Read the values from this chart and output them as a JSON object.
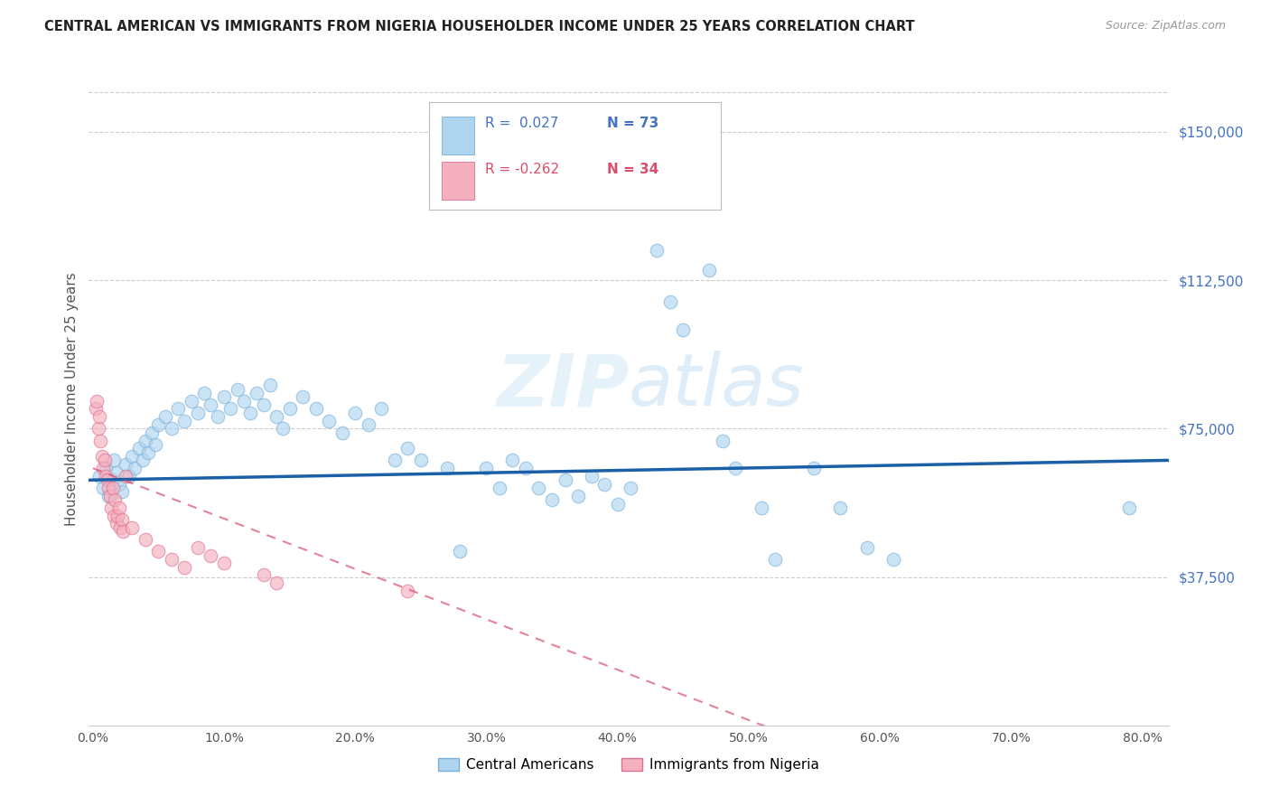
{
  "title": "CENTRAL AMERICAN VS IMMIGRANTS FROM NIGERIA HOUSEHOLDER INCOME UNDER 25 YEARS CORRELATION CHART",
  "source": "Source: ZipAtlas.com",
  "ylabel": "Householder Income Under 25 years",
  "ytick_labels": [
    "$150,000",
    "$112,500",
    "$75,000",
    "$37,500"
  ],
  "ytick_values": [
    150000,
    112500,
    75000,
    37500
  ],
  "ymin": 0,
  "ymax": 165000,
  "xmin": -0.003,
  "xmax": 0.82,
  "legend_label_blue": "Central Americans",
  "legend_label_pink": "Immigrants from Nigeria",
  "blue_scatter": [
    [
      0.005,
      63000
    ],
    [
      0.008,
      60000
    ],
    [
      0.01,
      65000
    ],
    [
      0.012,
      58000
    ],
    [
      0.015,
      62000
    ],
    [
      0.016,
      67000
    ],
    [
      0.018,
      64000
    ],
    [
      0.02,
      61000
    ],
    [
      0.022,
      59000
    ],
    [
      0.025,
      66000
    ],
    [
      0.028,
      63000
    ],
    [
      0.03,
      68000
    ],
    [
      0.032,
      65000
    ],
    [
      0.035,
      70000
    ],
    [
      0.038,
      67000
    ],
    [
      0.04,
      72000
    ],
    [
      0.042,
      69000
    ],
    [
      0.045,
      74000
    ],
    [
      0.048,
      71000
    ],
    [
      0.05,
      76000
    ],
    [
      0.055,
      78000
    ],
    [
      0.06,
      75000
    ],
    [
      0.065,
      80000
    ],
    [
      0.07,
      77000
    ],
    [
      0.075,
      82000
    ],
    [
      0.08,
      79000
    ],
    [
      0.085,
      84000
    ],
    [
      0.09,
      81000
    ],
    [
      0.095,
      78000
    ],
    [
      0.1,
      83000
    ],
    [
      0.105,
      80000
    ],
    [
      0.11,
      85000
    ],
    [
      0.115,
      82000
    ],
    [
      0.12,
      79000
    ],
    [
      0.125,
      84000
    ],
    [
      0.13,
      81000
    ],
    [
      0.135,
      86000
    ],
    [
      0.14,
      78000
    ],
    [
      0.145,
      75000
    ],
    [
      0.15,
      80000
    ],
    [
      0.16,
      83000
    ],
    [
      0.17,
      80000
    ],
    [
      0.18,
      77000
    ],
    [
      0.19,
      74000
    ],
    [
      0.2,
      79000
    ],
    [
      0.21,
      76000
    ],
    [
      0.22,
      80000
    ],
    [
      0.23,
      67000
    ],
    [
      0.24,
      70000
    ],
    [
      0.25,
      67000
    ],
    [
      0.27,
      65000
    ],
    [
      0.28,
      44000
    ],
    [
      0.3,
      65000
    ],
    [
      0.31,
      60000
    ],
    [
      0.32,
      67000
    ],
    [
      0.33,
      65000
    ],
    [
      0.34,
      60000
    ],
    [
      0.35,
      57000
    ],
    [
      0.36,
      62000
    ],
    [
      0.37,
      58000
    ],
    [
      0.38,
      63000
    ],
    [
      0.39,
      61000
    ],
    [
      0.4,
      56000
    ],
    [
      0.41,
      60000
    ],
    [
      0.43,
      120000
    ],
    [
      0.44,
      107000
    ],
    [
      0.45,
      100000
    ],
    [
      0.47,
      115000
    ],
    [
      0.48,
      72000
    ],
    [
      0.49,
      65000
    ],
    [
      0.51,
      55000
    ],
    [
      0.52,
      42000
    ],
    [
      0.55,
      65000
    ],
    [
      0.57,
      55000
    ],
    [
      0.59,
      45000
    ],
    [
      0.61,
      42000
    ],
    [
      0.79,
      55000
    ]
  ],
  "pink_scatter": [
    [
      0.002,
      80000
    ],
    [
      0.003,
      82000
    ],
    [
      0.004,
      75000
    ],
    [
      0.005,
      78000
    ],
    [
      0.006,
      72000
    ],
    [
      0.007,
      68000
    ],
    [
      0.008,
      65000
    ],
    [
      0.009,
      67000
    ],
    [
      0.01,
      63000
    ],
    [
      0.011,
      62000
    ],
    [
      0.012,
      60000
    ],
    [
      0.013,
      58000
    ],
    [
      0.014,
      55000
    ],
    [
      0.015,
      60000
    ],
    [
      0.016,
      53000
    ],
    [
      0.017,
      57000
    ],
    [
      0.018,
      51000
    ],
    [
      0.019,
      53000
    ],
    [
      0.02,
      55000
    ],
    [
      0.021,
      50000
    ],
    [
      0.022,
      52000
    ],
    [
      0.023,
      49000
    ],
    [
      0.025,
      63000
    ],
    [
      0.03,
      50000
    ],
    [
      0.04,
      47000
    ],
    [
      0.05,
      44000
    ],
    [
      0.06,
      42000
    ],
    [
      0.07,
      40000
    ],
    [
      0.08,
      45000
    ],
    [
      0.09,
      43000
    ],
    [
      0.1,
      41000
    ],
    [
      0.13,
      38000
    ],
    [
      0.14,
      36000
    ],
    [
      0.24,
      34000
    ]
  ],
  "blue_line_color": "#1a5fa8",
  "pink_line_color": "#d94f6b",
  "grid_color": "#cccccc",
  "bg_color": "#ffffff",
  "scatter_alpha": 0.65,
  "scatter_size": 110
}
